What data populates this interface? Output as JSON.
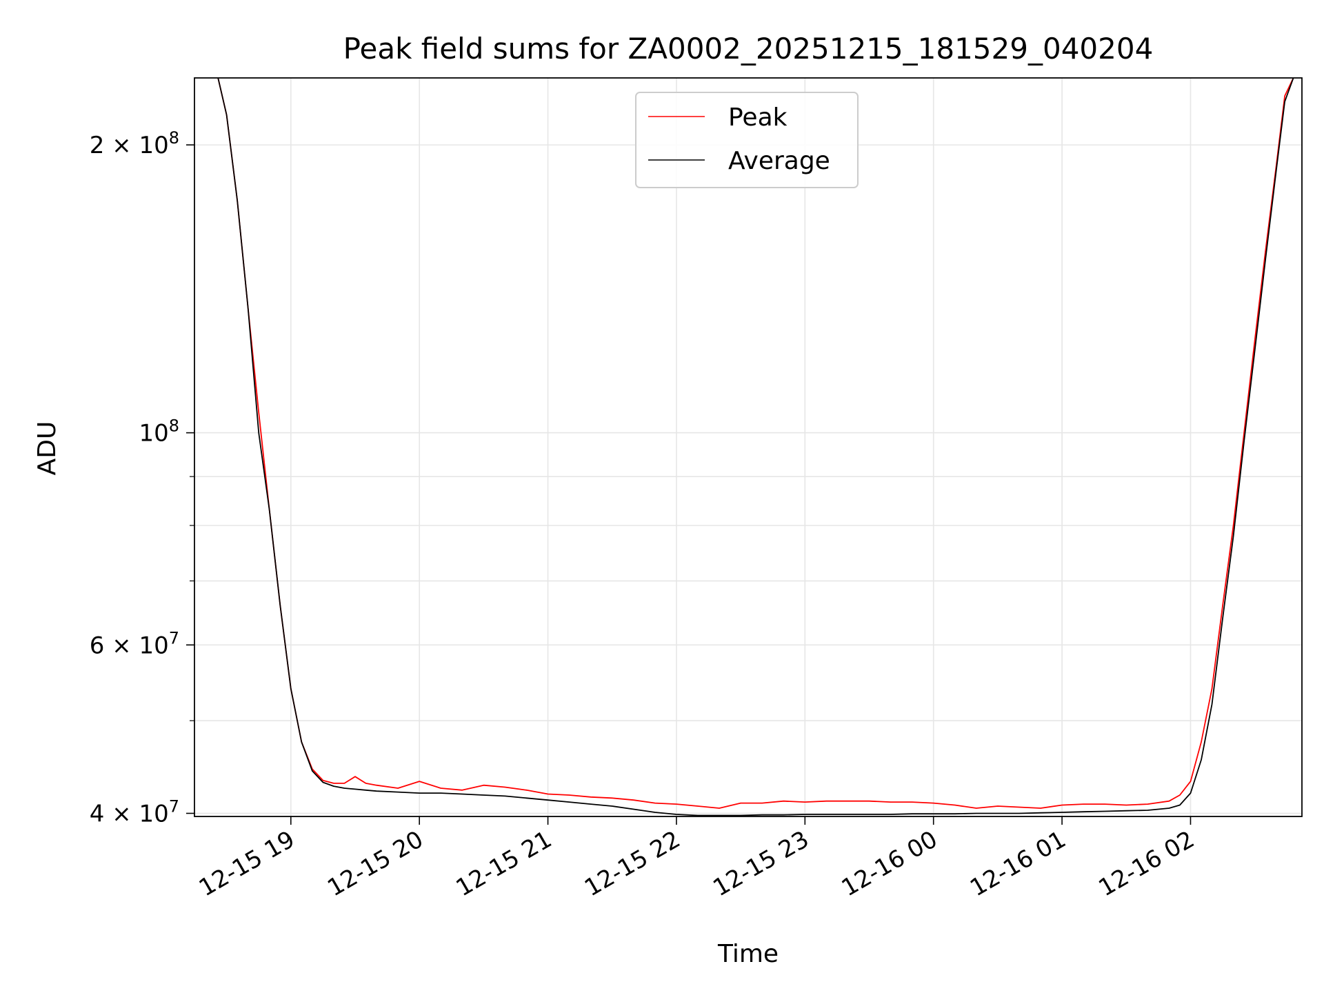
{
  "chart_data": {
    "type": "line",
    "title": "Peak field sums for ZA0002_20251215_181529_040204",
    "xlabel": "Time",
    "ylabel": "ADU",
    "yscale": "log",
    "xlim": [
      "2025-12-15 18:15",
      "2025-12-16 02:52"
    ],
    "ylim": [
      39700000,
      235000000
    ],
    "grid": true,
    "legend_position": "upper center",
    "x_ticks": [
      "12-15 19",
      "12-15 20",
      "12-15 21",
      "12-15 22",
      "12-15 23",
      "12-16 00",
      "12-16 01",
      "12-16 02"
    ],
    "x_tick_times": [
      "2025-12-15 19:00",
      "2025-12-15 20:00",
      "2025-12-15 21:00",
      "2025-12-15 22:00",
      "2025-12-15 23:00",
      "2025-12-16 00:00",
      "2025-12-16 01:00",
      "2025-12-16 02:00"
    ],
    "y_ticks": [
      {
        "value": 40000000,
        "mantissa": "4",
        "exponent": "7"
      },
      {
        "value": 60000000,
        "mantissa": "6",
        "exponent": "7"
      },
      {
        "value": 100000000,
        "mantissa": "",
        "exponent": "8"
      },
      {
        "value": 200000000,
        "mantissa": "2",
        "exponent": "8"
      }
    ],
    "y_minor_ticks": [
      50000000,
      70000000,
      80000000,
      90000000
    ],
    "series": [
      {
        "name": "Peak",
        "color": "#ff0000",
        "x": [
          "2025-12-15 18:26",
          "2025-12-15 18:30",
          "2025-12-15 18:35",
          "2025-12-15 18:40",
          "2025-12-15 18:45",
          "2025-12-15 18:50",
          "2025-12-15 18:55",
          "2025-12-15 19:00",
          "2025-12-15 19:05",
          "2025-12-15 19:10",
          "2025-12-15 19:15",
          "2025-12-15 19:20",
          "2025-12-15 19:25",
          "2025-12-15 19:30",
          "2025-12-15 19:35",
          "2025-12-15 19:40",
          "2025-12-15 19:50",
          "2025-12-15 20:00",
          "2025-12-15 20:10",
          "2025-12-15 20:20",
          "2025-12-15 20:30",
          "2025-12-15 20:40",
          "2025-12-15 20:50",
          "2025-12-15 21:00",
          "2025-12-15 21:10",
          "2025-12-15 21:20",
          "2025-12-15 21:30",
          "2025-12-15 21:40",
          "2025-12-15 21:50",
          "2025-12-15 22:00",
          "2025-12-15 22:10",
          "2025-12-15 22:20",
          "2025-12-15 22:30",
          "2025-12-15 22:40",
          "2025-12-15 22:50",
          "2025-12-15 23:00",
          "2025-12-15 23:10",
          "2025-12-15 23:20",
          "2025-12-15 23:30",
          "2025-12-15 23:40",
          "2025-12-15 23:50",
          "2025-12-16 00:00",
          "2025-12-16 00:10",
          "2025-12-16 00:20",
          "2025-12-16 00:30",
          "2025-12-16 00:40",
          "2025-12-16 00:50",
          "2025-12-16 01:00",
          "2025-12-16 01:10",
          "2025-12-16 01:20",
          "2025-12-16 01:30",
          "2025-12-16 01:40",
          "2025-12-16 01:50",
          "2025-12-16 01:55",
          "2025-12-16 02:00",
          "2025-12-16 02:05",
          "2025-12-16 02:10",
          "2025-12-16 02:15",
          "2025-12-16 02:20",
          "2025-12-16 02:25",
          "2025-12-16 02:30",
          "2025-12-16 02:35",
          "2025-12-16 02:40",
          "2025-12-16 02:44",
          "2025-12-16 02:48"
        ],
        "y": [
          235000000,
          215000000,
          175000000,
          135000000,
          105000000,
          83000000,
          66000000,
          54000000,
          47500000,
          44500000,
          43300000,
          43000000,
          43000000,
          43700000,
          43000000,
          42800000,
          42500000,
          43200000,
          42500000,
          42300000,
          42800000,
          42600000,
          42300000,
          41900000,
          41800000,
          41600000,
          41500000,
          41300000,
          41000000,
          40900000,
          40700000,
          40500000,
          41000000,
          41000000,
          41200000,
          41100000,
          41200000,
          41200000,
          41200000,
          41100000,
          41100000,
          41000000,
          40800000,
          40500000,
          40700000,
          40600000,
          40500000,
          40800000,
          40900000,
          40900000,
          40800000,
          40900000,
          41200000,
          41800000,
          43200000,
          47500000,
          54000000,
          66000000,
          80000000,
          100000000,
          125000000,
          155000000,
          190000000,
          225000000,
          235000000
        ]
      },
      {
        "name": "Average",
        "color": "#000000",
        "x": [
          "2025-12-15 18:26",
          "2025-12-15 18:30",
          "2025-12-15 18:35",
          "2025-12-15 18:40",
          "2025-12-15 18:45",
          "2025-12-15 18:50",
          "2025-12-15 18:55",
          "2025-12-15 19:00",
          "2025-12-15 19:05",
          "2025-12-15 19:10",
          "2025-12-15 19:15",
          "2025-12-15 19:20",
          "2025-12-15 19:25",
          "2025-12-15 19:30",
          "2025-12-15 19:35",
          "2025-12-15 19:40",
          "2025-12-15 19:50",
          "2025-12-15 20:00",
          "2025-12-15 20:10",
          "2025-12-15 20:20",
          "2025-12-15 20:30",
          "2025-12-15 20:40",
          "2025-12-15 20:50",
          "2025-12-15 21:00",
          "2025-12-15 21:10",
          "2025-12-15 21:20",
          "2025-12-15 21:30",
          "2025-12-15 21:40",
          "2025-12-15 21:50",
          "2025-12-15 22:00",
          "2025-12-15 22:10",
          "2025-12-15 22:20",
          "2025-12-15 22:30",
          "2025-12-15 22:40",
          "2025-12-15 22:50",
          "2025-12-15 23:00",
          "2025-12-15 23:10",
          "2025-12-15 23:20",
          "2025-12-15 23:30",
          "2025-12-15 23:40",
          "2025-12-15 23:50",
          "2025-12-16 00:00",
          "2025-12-16 00:10",
          "2025-12-16 00:20",
          "2025-12-16 00:30",
          "2025-12-16 00:40",
          "2025-12-16 00:50",
          "2025-12-16 01:00",
          "2025-12-16 01:10",
          "2025-12-16 01:20",
          "2025-12-16 01:30",
          "2025-12-16 01:40",
          "2025-12-16 01:50",
          "2025-12-16 01:55",
          "2025-12-16 02:00",
          "2025-12-16 02:05",
          "2025-12-16 02:10",
          "2025-12-16 02:15",
          "2025-12-16 02:20",
          "2025-12-16 02:25",
          "2025-12-16 02:30",
          "2025-12-16 02:35",
          "2025-12-16 02:40",
          "2025-12-16 02:44",
          "2025-12-16 02:48"
        ],
        "y": [
          235000000,
          215000000,
          175000000,
          135000000,
          100000000,
          83000000,
          66000000,
          54000000,
          47500000,
          44300000,
          43100000,
          42700000,
          42500000,
          42400000,
          42300000,
          42200000,
          42100000,
          42000000,
          42000000,
          41900000,
          41800000,
          41700000,
          41500000,
          41300000,
          41100000,
          40900000,
          40700000,
          40400000,
          40100000,
          39900000,
          39800000,
          39800000,
          39800000,
          39850000,
          39850000,
          39900000,
          39900000,
          39900000,
          39900000,
          39900000,
          39950000,
          39950000,
          39950000,
          40000000,
          40000000,
          40000000,
          40050000,
          40100000,
          40150000,
          40200000,
          40250000,
          40300000,
          40500000,
          40800000,
          42000000,
          45500000,
          52000000,
          64000000,
          78000000,
          98000000,
          122000000,
          152000000,
          188000000,
          222000000,
          235000000
        ]
      }
    ]
  }
}
